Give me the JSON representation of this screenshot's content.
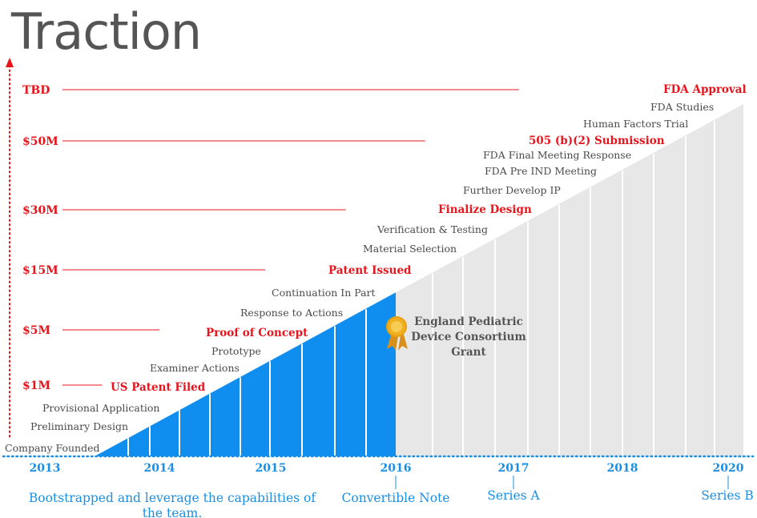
{
  "title": "Traction",
  "colors": {
    "funding": "#e8141c",
    "blue": "#0f8ef0",
    "gray_fill": "#e7e7e7",
    "axis": "#1a8fe3",
    "milestone": "#4a4a4a",
    "award": "#f0b020"
  },
  "chart_data": {
    "type": "area",
    "y_axis": {
      "funding_levels": [
        {
          "label": "$1M",
          "line_end_year": 2013.5
        },
        {
          "label": "$5M",
          "line_end_year": 2014
        },
        {
          "label": "$15M",
          "line_end_year": 2014.95
        },
        {
          "label": "$30M",
          "line_end_year": 2015.6
        },
        {
          "label": "$50M",
          "line_end_year": 2016.25
        },
        {
          "label": "TBD",
          "line_end_year": 2017.05
        }
      ]
    },
    "x_axis": {
      "ticks": [
        "2013",
        "2014",
        "2015",
        "2016",
        "2017",
        "2018",
        "2020"
      ]
    },
    "progress_until": "2016",
    "milestones": [
      {
        "label": "Company Founded",
        "highlight": false
      },
      {
        "label": "Preliminary Design",
        "highlight": false
      },
      {
        "label": "Provisional Application",
        "highlight": false
      },
      {
        "label": "US Patent Filed",
        "highlight": true
      },
      {
        "label": "Examiner Actions",
        "highlight": false
      },
      {
        "label": "Prototype",
        "highlight": false
      },
      {
        "label": "Proof of Concept",
        "highlight": true
      },
      {
        "label": "Response to Actions",
        "highlight": false
      },
      {
        "label": "Continuation In Part",
        "highlight": false
      },
      {
        "label": "Patent Issued",
        "highlight": true
      },
      {
        "label": "Material Selection",
        "highlight": false
      },
      {
        "label": "Verification & Testing",
        "highlight": false
      },
      {
        "label": "Finalize Design",
        "highlight": true
      },
      {
        "label": "Further Develop  IP",
        "highlight": false
      },
      {
        "label": "FDA Pre IND Meeting",
        "highlight": false
      },
      {
        "label": "FDA Final Meeting Response",
        "highlight": false
      },
      {
        "label": "505 (b)(2) Submission",
        "highlight": true
      },
      {
        "label": "Human Factors Trial",
        "highlight": false
      },
      {
        "label": "FDA Studies",
        "highlight": false
      },
      {
        "label": "FDA Approval",
        "highlight": true
      }
    ],
    "award": {
      "icon": "award-ribbon-icon",
      "lines": [
        "England Pediatric",
        "Device Consortium",
        "Grant"
      ]
    },
    "funding_rounds": [
      {
        "year": "2013",
        "lines": [
          "Bootstrapped and leverage the capabilities of",
          "the team."
        ]
      },
      {
        "year": "2016",
        "lines": [
          "Convertible Note"
        ]
      },
      {
        "year": "2017",
        "lines": [
          "Series A"
        ]
      },
      {
        "year": "2020",
        "lines": [
          "Series B"
        ]
      }
    ]
  }
}
